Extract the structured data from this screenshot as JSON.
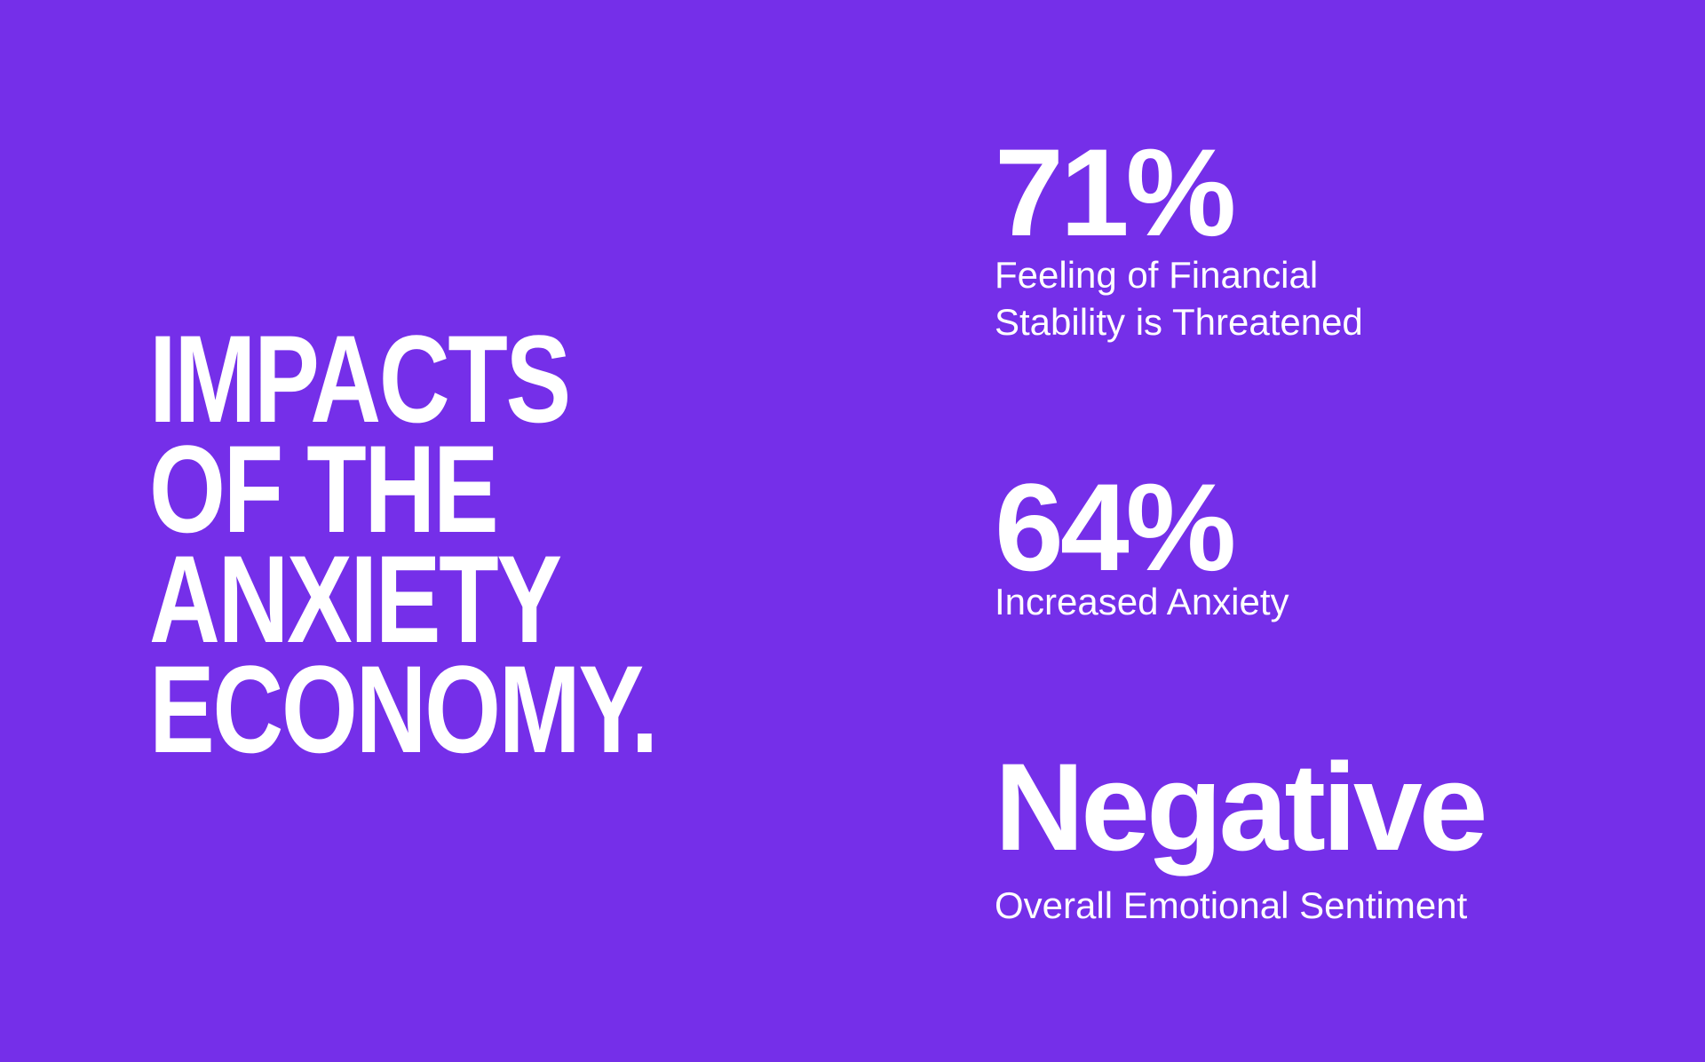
{
  "title": {
    "lines": [
      "IMPACTS",
      "OF THE",
      "ANXIETY",
      "ECONOMY."
    ]
  },
  "stats": [
    {
      "value": "71%",
      "label": [
        "Feeling of Financial",
        "Stability is Threatened"
      ]
    },
    {
      "value": "64%",
      "label": [
        "Increased Anxiety"
      ]
    },
    {
      "value": "Negative",
      "label": [
        "Overall Emotional Sentiment"
      ]
    }
  ]
}
